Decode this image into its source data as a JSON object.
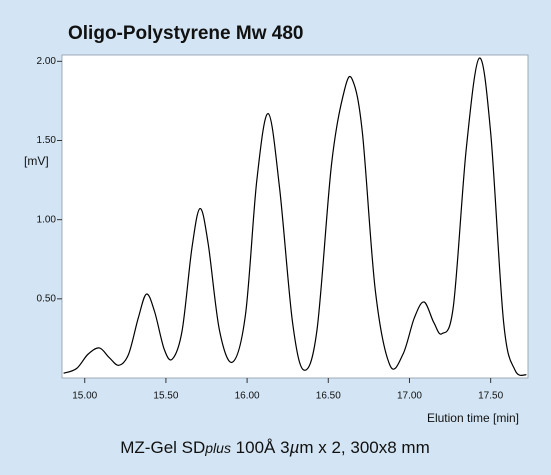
{
  "chart_data": {
    "type": "line",
    "title": "Oligo-Polystyrene Mw 480",
    "ylabel": "[mV]",
    "xlabel": "Elution time [min]",
    "caption": [
      "MZ-Gel SD",
      "plus",
      " 100Å 3",
      "µ",
      "m x 2, 300x8 mm"
    ],
    "xlim": [
      14.86,
      17.73
    ],
    "ylim": [
      0,
      2.04
    ],
    "xticks": [
      {
        "value": 15,
        "label": "15.00"
      },
      {
        "value": 15.5,
        "label": "15.50"
      },
      {
        "value": 16,
        "label": "16.00"
      },
      {
        "value": 16.5,
        "label": "16.50"
      },
      {
        "value": 17,
        "label": "17.00"
      },
      {
        "value": 17.5,
        "label": "17.50"
      }
    ],
    "yticks": [
      {
        "value": 0.5,
        "label": "0.50"
      },
      {
        "value": 1,
        "label": "1.00"
      },
      {
        "value": 1.5,
        "label": "1.50"
      },
      {
        "value": 2,
        "label": "2.00"
      }
    ],
    "series": [
      {
        "color": "#000000",
        "x": [
          14.87,
          14.95,
          15.02,
          15.09,
          15.15,
          15.21,
          15.27,
          15.33,
          15.38,
          15.43,
          15.49,
          15.54,
          15.6,
          15.66,
          15.71,
          15.76,
          15.83,
          15.91,
          15.99,
          16.06,
          16.13,
          16.2,
          16.28,
          16.35,
          16.43,
          16.52,
          16.6,
          16.65,
          16.71,
          16.79,
          16.88,
          16.96,
          17.03,
          17.09,
          17.15,
          17.2,
          17.27,
          17.35,
          17.43,
          17.5,
          17.58,
          17.65,
          17.72
        ],
        "values": [
          0.03,
          0.06,
          0.15,
          0.19,
          0.13,
          0.08,
          0.15,
          0.38,
          0.53,
          0.42,
          0.18,
          0.12,
          0.3,
          0.82,
          1.07,
          0.85,
          0.3,
          0.1,
          0.4,
          1.25,
          1.67,
          1.2,
          0.35,
          0.05,
          0.3,
          1.35,
          1.82,
          1.88,
          1.55,
          0.55,
          0.08,
          0.15,
          0.38,
          0.48,
          0.35,
          0.28,
          0.45,
          1.45,
          2.02,
          1.55,
          0.35,
          0.05,
          0.02
        ]
      }
    ]
  }
}
